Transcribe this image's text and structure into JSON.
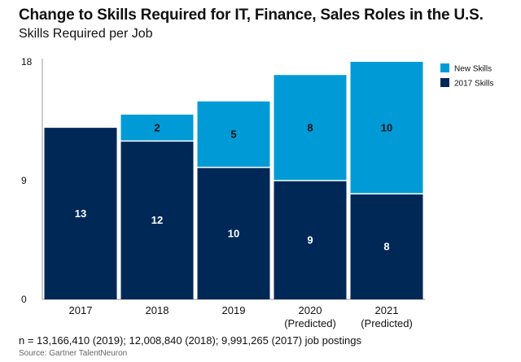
{
  "chart_data": {
    "type": "bar",
    "stacked": true,
    "title": "Change to Skills Required for IT, Finance, Sales Roles in the U.S.",
    "subtitle": "Skills Required per Job",
    "categories": [
      "2017",
      "2018",
      "2019",
      "2020\n(Predicted)",
      "2021\n(Predicted)"
    ],
    "series": [
      {
        "name": "2017 Skills",
        "values": [
          13,
          12,
          10,
          9,
          8
        ],
        "labels": [
          "13",
          "12",
          "10",
          "9",
          "8"
        ],
        "color": "#002856"
      },
      {
        "name": "New Skills",
        "values": [
          0,
          2,
          5,
          8,
          10
        ],
        "labels": [
          "",
          "2",
          "5",
          "8",
          "10"
        ],
        "color": "#009bd6"
      }
    ],
    "yticks": [
      0,
      9,
      18
    ],
    "ytick_labels": [
      "0",
      "9",
      "18"
    ],
    "ylim": [
      0,
      18
    ],
    "grid": false,
    "legend_position": "top-right"
  },
  "footnote": "n = 13,166,410 (2019); 12,008,840 (2018); 9,991,265 (2017) job postings",
  "source": "Source: Gartner TalentNeuron"
}
